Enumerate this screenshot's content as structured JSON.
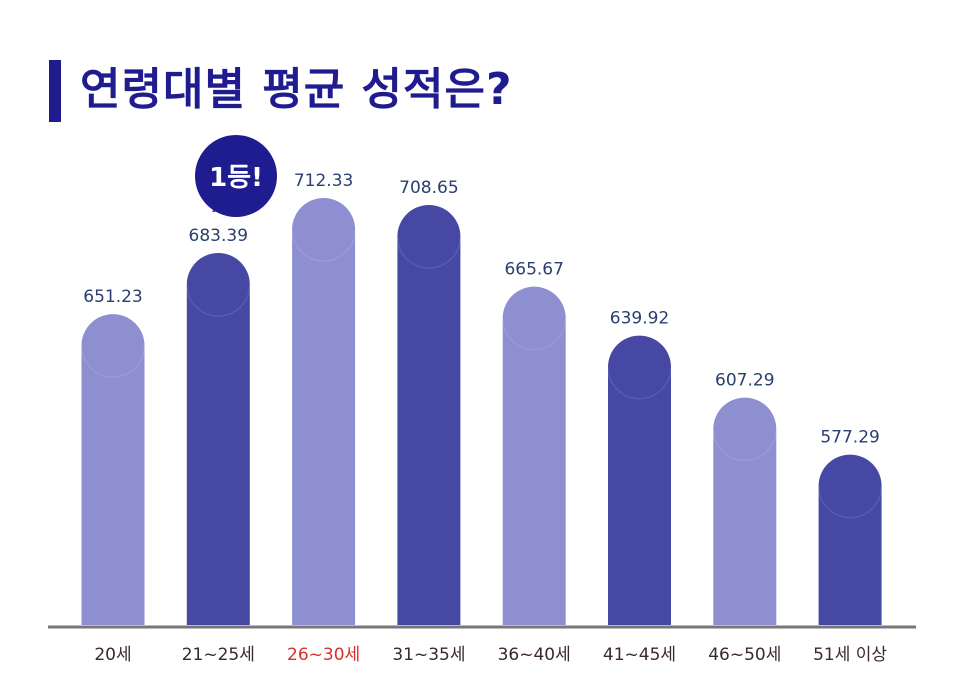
{
  "title": "연령대별 평균 성적은?",
  "badge": "1등!",
  "colors": {
    "title": "#1f1c8f",
    "bar_light": "#8e8fd1",
    "bar_dark": "#4748a3",
    "badge": "#1f1c8f",
    "highlight_label": "#d6322c",
    "axis": "#777777"
  },
  "chart_data": {
    "type": "bar",
    "title": "연령대별 평균 성적은?",
    "categories": [
      "20세",
      "21~25세",
      "26~30세",
      "31~35세",
      "36~40세",
      "41~45세",
      "46~50세",
      "51세 이상"
    ],
    "values": [
      651.23,
      683.39,
      712.33,
      708.65,
      665.67,
      639.92,
      607.29,
      577.29
    ],
    "value_labels": [
      "651.23",
      "683.39",
      "712.33",
      "708.65",
      "665.67",
      "639.92",
      "607.29",
      "577.29"
    ],
    "bar_shades": [
      "light",
      "dark",
      "light",
      "dark",
      "light",
      "dark",
      "light",
      "dark"
    ],
    "highlight_index": 2,
    "xlabel": "",
    "ylabel": "",
    "grid": false,
    "legend": "none"
  }
}
